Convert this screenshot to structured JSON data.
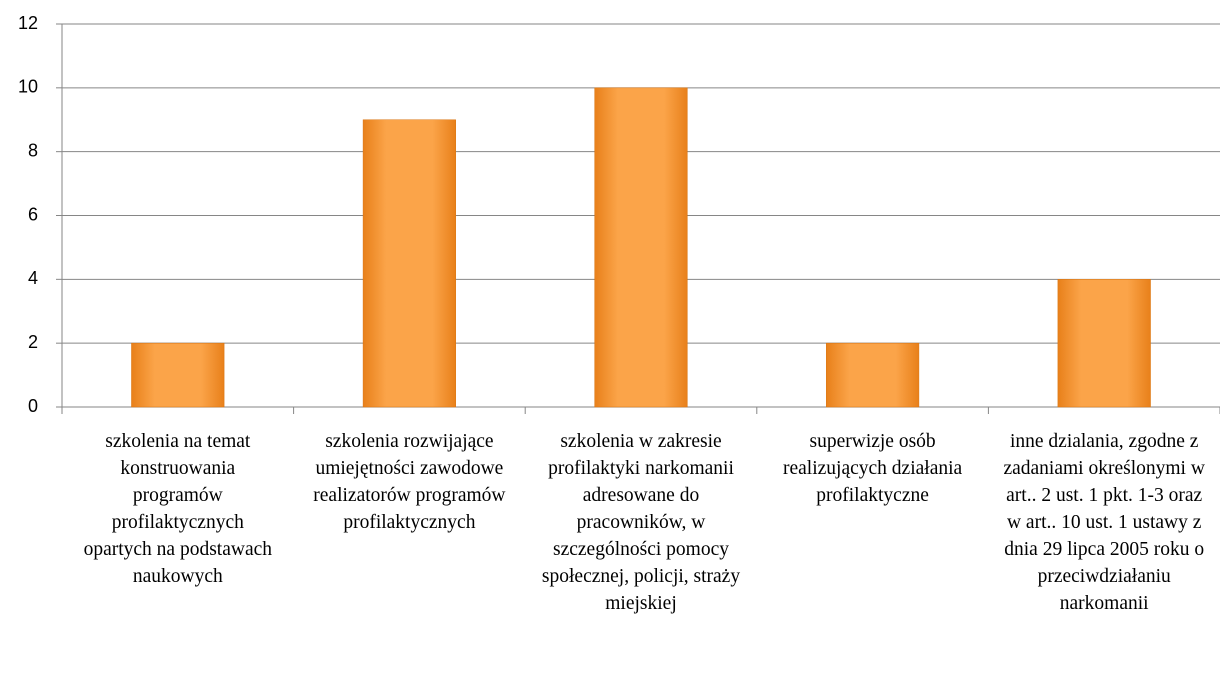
{
  "chart_data": {
    "type": "bar",
    "categories": [
      "szkolenia na temat konstruowania programów profilaktycznych opartych na podstawach naukowych",
      "szkolenia rozwijające umiejętności zawodowe realizatorów programów profilaktycznych",
      "szkolenia w zakresie profilaktyki narkomanii adresowane do pracowników, w szczególności pomocy społecznej, policji, straży miejskiej",
      "superwizje osób realizujących działania profilaktyczne",
      "inne dzialania, zgodne z zadaniami określonymi w art.. 2 ust. 1 pkt. 1-3 oraz w art.. 10 ust. 1 ustawy z dnia 29 lipca 2005 roku o przeciwdziałaniu narkomanii"
    ],
    "values": [
      2,
      9,
      10,
      2,
      4
    ],
    "color": "#f7962f",
    "ylim": [
      0,
      12
    ],
    "yticks": [
      0,
      2,
      4,
      6,
      8,
      10,
      12
    ],
    "grid": true
  }
}
